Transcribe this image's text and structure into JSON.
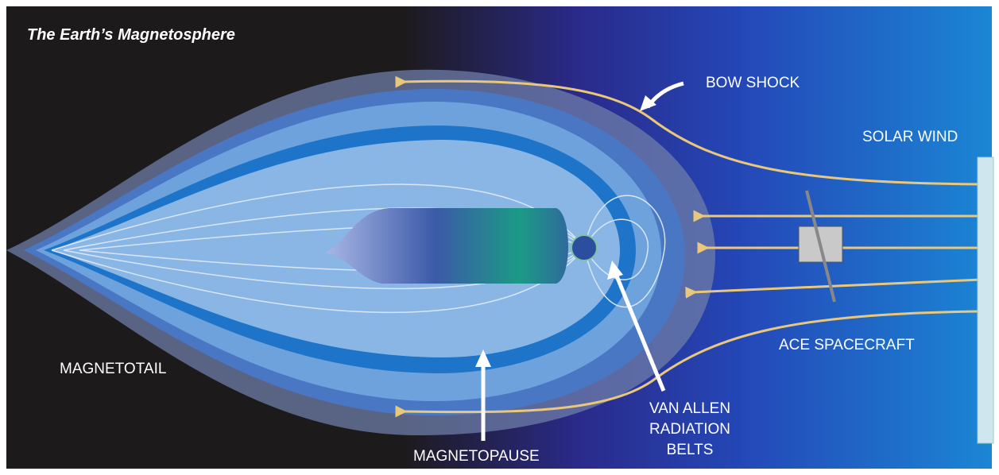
{
  "title": "The Earth’s Magnetosphere",
  "labels": {
    "bow_shock": "BOW SHOCK",
    "solar_wind": "SOLAR WIND",
    "ace_spacecraft": "ACE SPACECRAFT",
    "magnetotail": "MAGNETOTAIL",
    "magnetopause": "MAGNETOPAUSE",
    "van_allen": [
      "VAN ALLEN",
      "RADIATION",
      "BELTS"
    ]
  }
}
